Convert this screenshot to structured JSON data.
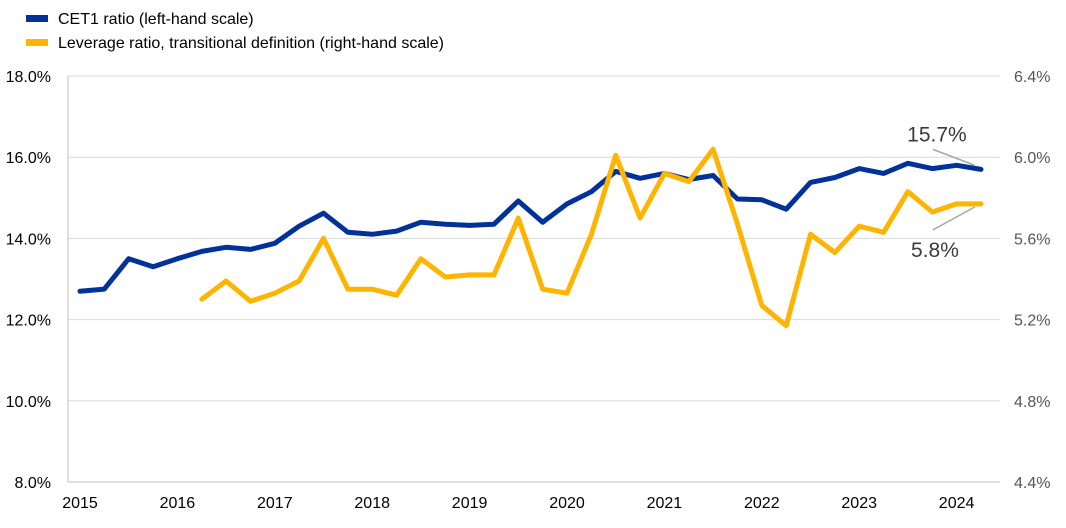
{
  "chart_data": {
    "type": "line",
    "title": "",
    "x_tick_labels": [
      "2015",
      "2016",
      "2017",
      "2018",
      "2019",
      "2020",
      "2021",
      "2022",
      "2023",
      "2024"
    ],
    "x_start_year": 2015,
    "period": "quarterly",
    "left_axis": {
      "ylim": [
        8,
        18
      ],
      "ticks": [
        "8.0%",
        "10.0%",
        "12.0%",
        "14.0%",
        "16.0%",
        "18.0%"
      ]
    },
    "right_axis": {
      "ylim": [
        4.4,
        6.4
      ],
      "ticks": [
        "4.4%",
        "4.8%",
        "5.2%",
        "5.6%",
        "6.0%",
        "6.4%"
      ]
    },
    "grid": true,
    "legend_position": "top-left",
    "series": [
      {
        "name": "CET1 ratio (left-hand scale)",
        "axis": "left",
        "color": "#003299",
        "start_quarter_index": 0,
        "values": [
          12.7,
          12.75,
          13.5,
          13.3,
          13.5,
          13.68,
          13.78,
          13.73,
          13.88,
          14.3,
          14.62,
          14.15,
          14.1,
          14.18,
          14.4,
          14.35,
          14.32,
          14.35,
          14.92,
          14.4,
          14.85,
          15.15,
          15.65,
          15.48,
          15.6,
          15.45,
          15.55,
          14.97,
          14.95,
          14.72,
          15.38,
          15.5,
          15.72,
          15.6,
          15.85,
          15.72,
          15.8,
          15.7
        ]
      },
      {
        "name": "Leverage ratio, transitional definition (right-hand scale)",
        "axis": "right",
        "color": "#FFB400",
        "start_quarter_index": 5,
        "values": [
          5.3,
          5.39,
          5.29,
          5.33,
          5.39,
          5.6,
          5.35,
          5.35,
          5.32,
          5.5,
          5.41,
          5.42,
          5.42,
          5.7,
          5.35,
          5.33,
          5.62,
          6.01,
          5.7,
          5.92,
          5.88,
          6.04,
          5.67,
          5.27,
          5.17,
          5.62,
          5.53,
          5.66,
          5.63,
          5.83,
          5.73,
          5.77,
          5.77
        ]
      }
    ],
    "annotations": [
      {
        "text": "15.7%",
        "series": "CET1 ratio (left-hand scale)"
      },
      {
        "text": "5.8%",
        "series": "Leverage ratio, transitional definition (right-hand scale)"
      }
    ]
  }
}
